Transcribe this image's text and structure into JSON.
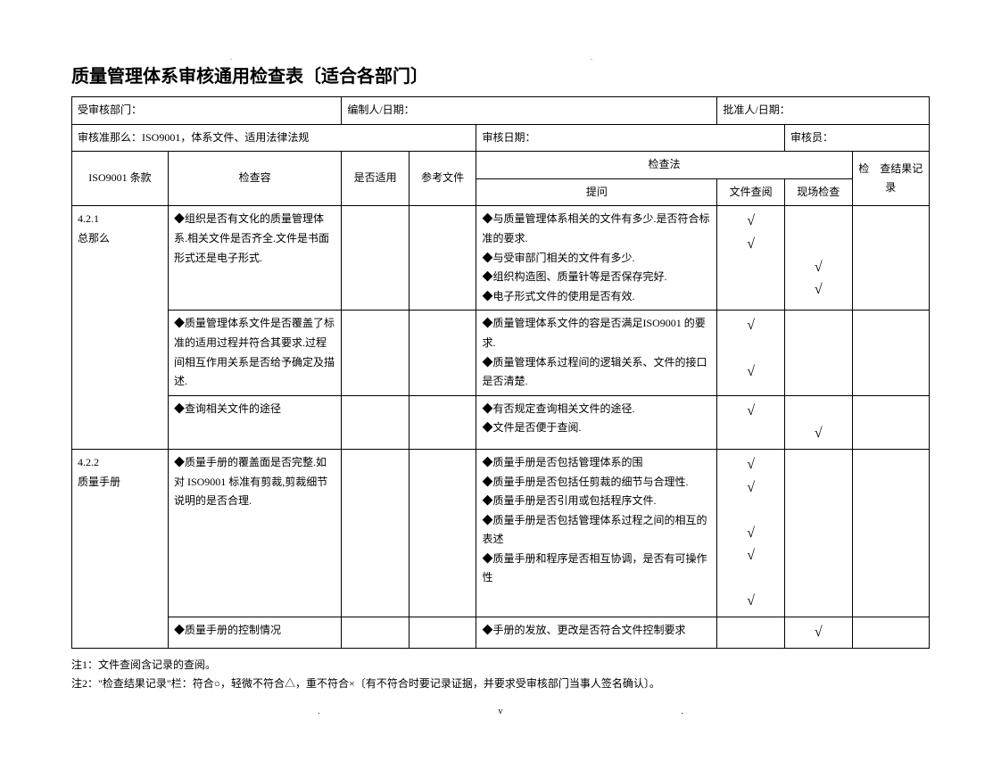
{
  "title": "质量管理体系审核通用检查表〔适合各部门〕",
  "header": {
    "dept_label": "受审核部门：",
    "compiler_label": "编制人/日期：",
    "approver_label": "批准人/日期：",
    "criteria_label": "审核准那么：",
    "criteria_value": "ISO9001，体系文件、适用法律法规",
    "audit_date_label": "审核日期：",
    "auditor_label": "审核员："
  },
  "columns": {
    "clause": "ISO9001 条款",
    "content": "检查容",
    "applicable": "是否适用",
    "ref_doc": "参考文件",
    "method": "检查法",
    "question": "提问",
    "doc_review": "文件查阅",
    "onsite": "现场检查",
    "result": "检　查结果记录"
  },
  "rows": [
    {
      "clause": "4.2.1\n总那么",
      "clause_rowspan": 3,
      "content": "◆组织是否有文化的质量管理体系.相关文件是否齐全.文件是书面形式还是电子形式.",
      "question": "◆与质量管理体系相关的文件有多少.是否符合标准的要求.\n◆与受审部门相关的文件有多少.\n◆组织构造图、质量针等是否保存完好.\n◆电子形式文件的使用是否有效.",
      "doc_review": "√\n√",
      "onsite": "\n\n√\n√"
    },
    {
      "content": "◆质量管理体系文件是否覆盖了标准的适用过程并符合其要求.过程间相互作用关系是否给予确定及描述.",
      "question": "◆质量管理体系文件的容是否满足ISO9001 的要求.\n◆质量管理体系过程间的逻辑关系、文件的接口是否清楚.",
      "doc_review": "√\n\n√",
      "onsite": ""
    },
    {
      "content": "◆查询相关文件的途径",
      "question": "◆有否规定查询相关文件的途径.\n◆文件是否便于查阅.",
      "doc_review": "√",
      "onsite": "\n√"
    },
    {
      "clause": "4.2.2\n质量手册",
      "clause_rowspan": 2,
      "content": "◆质量手册的覆盖面是否完整.如对 ISO9001 标准有剪裁,剪裁细节说明的是否合理.",
      "question": "◆质量手册是否包括管理体系的围\n◆质量手册是否包括任剪裁的细节与合理性.\n◆质量手册是否引用或包括程序文件.\n◆质量手册是否包括管理体系过程之间的相互的表述\n◆质量手册和程序是否相互协调，是否有可操作性",
      "doc_review": "√\n√\n\n√\n√\n\n√",
      "onsite": ""
    },
    {
      "content": "◆质量手册的控制情况",
      "question": "◆手册的发放、更改是否符合文件控制要求",
      "doc_review": "",
      "onsite": "√"
    }
  ],
  "notes": {
    "n1": "注1：文件查阅含记录的查阅。",
    "n2": "注2：\"检查结果记录\"栏：符合○，轻微不符合△，重不符合×〔有不符合时要记录证据，并要求受审核部门当事人签名确认〕。"
  },
  "footer_v": "v"
}
